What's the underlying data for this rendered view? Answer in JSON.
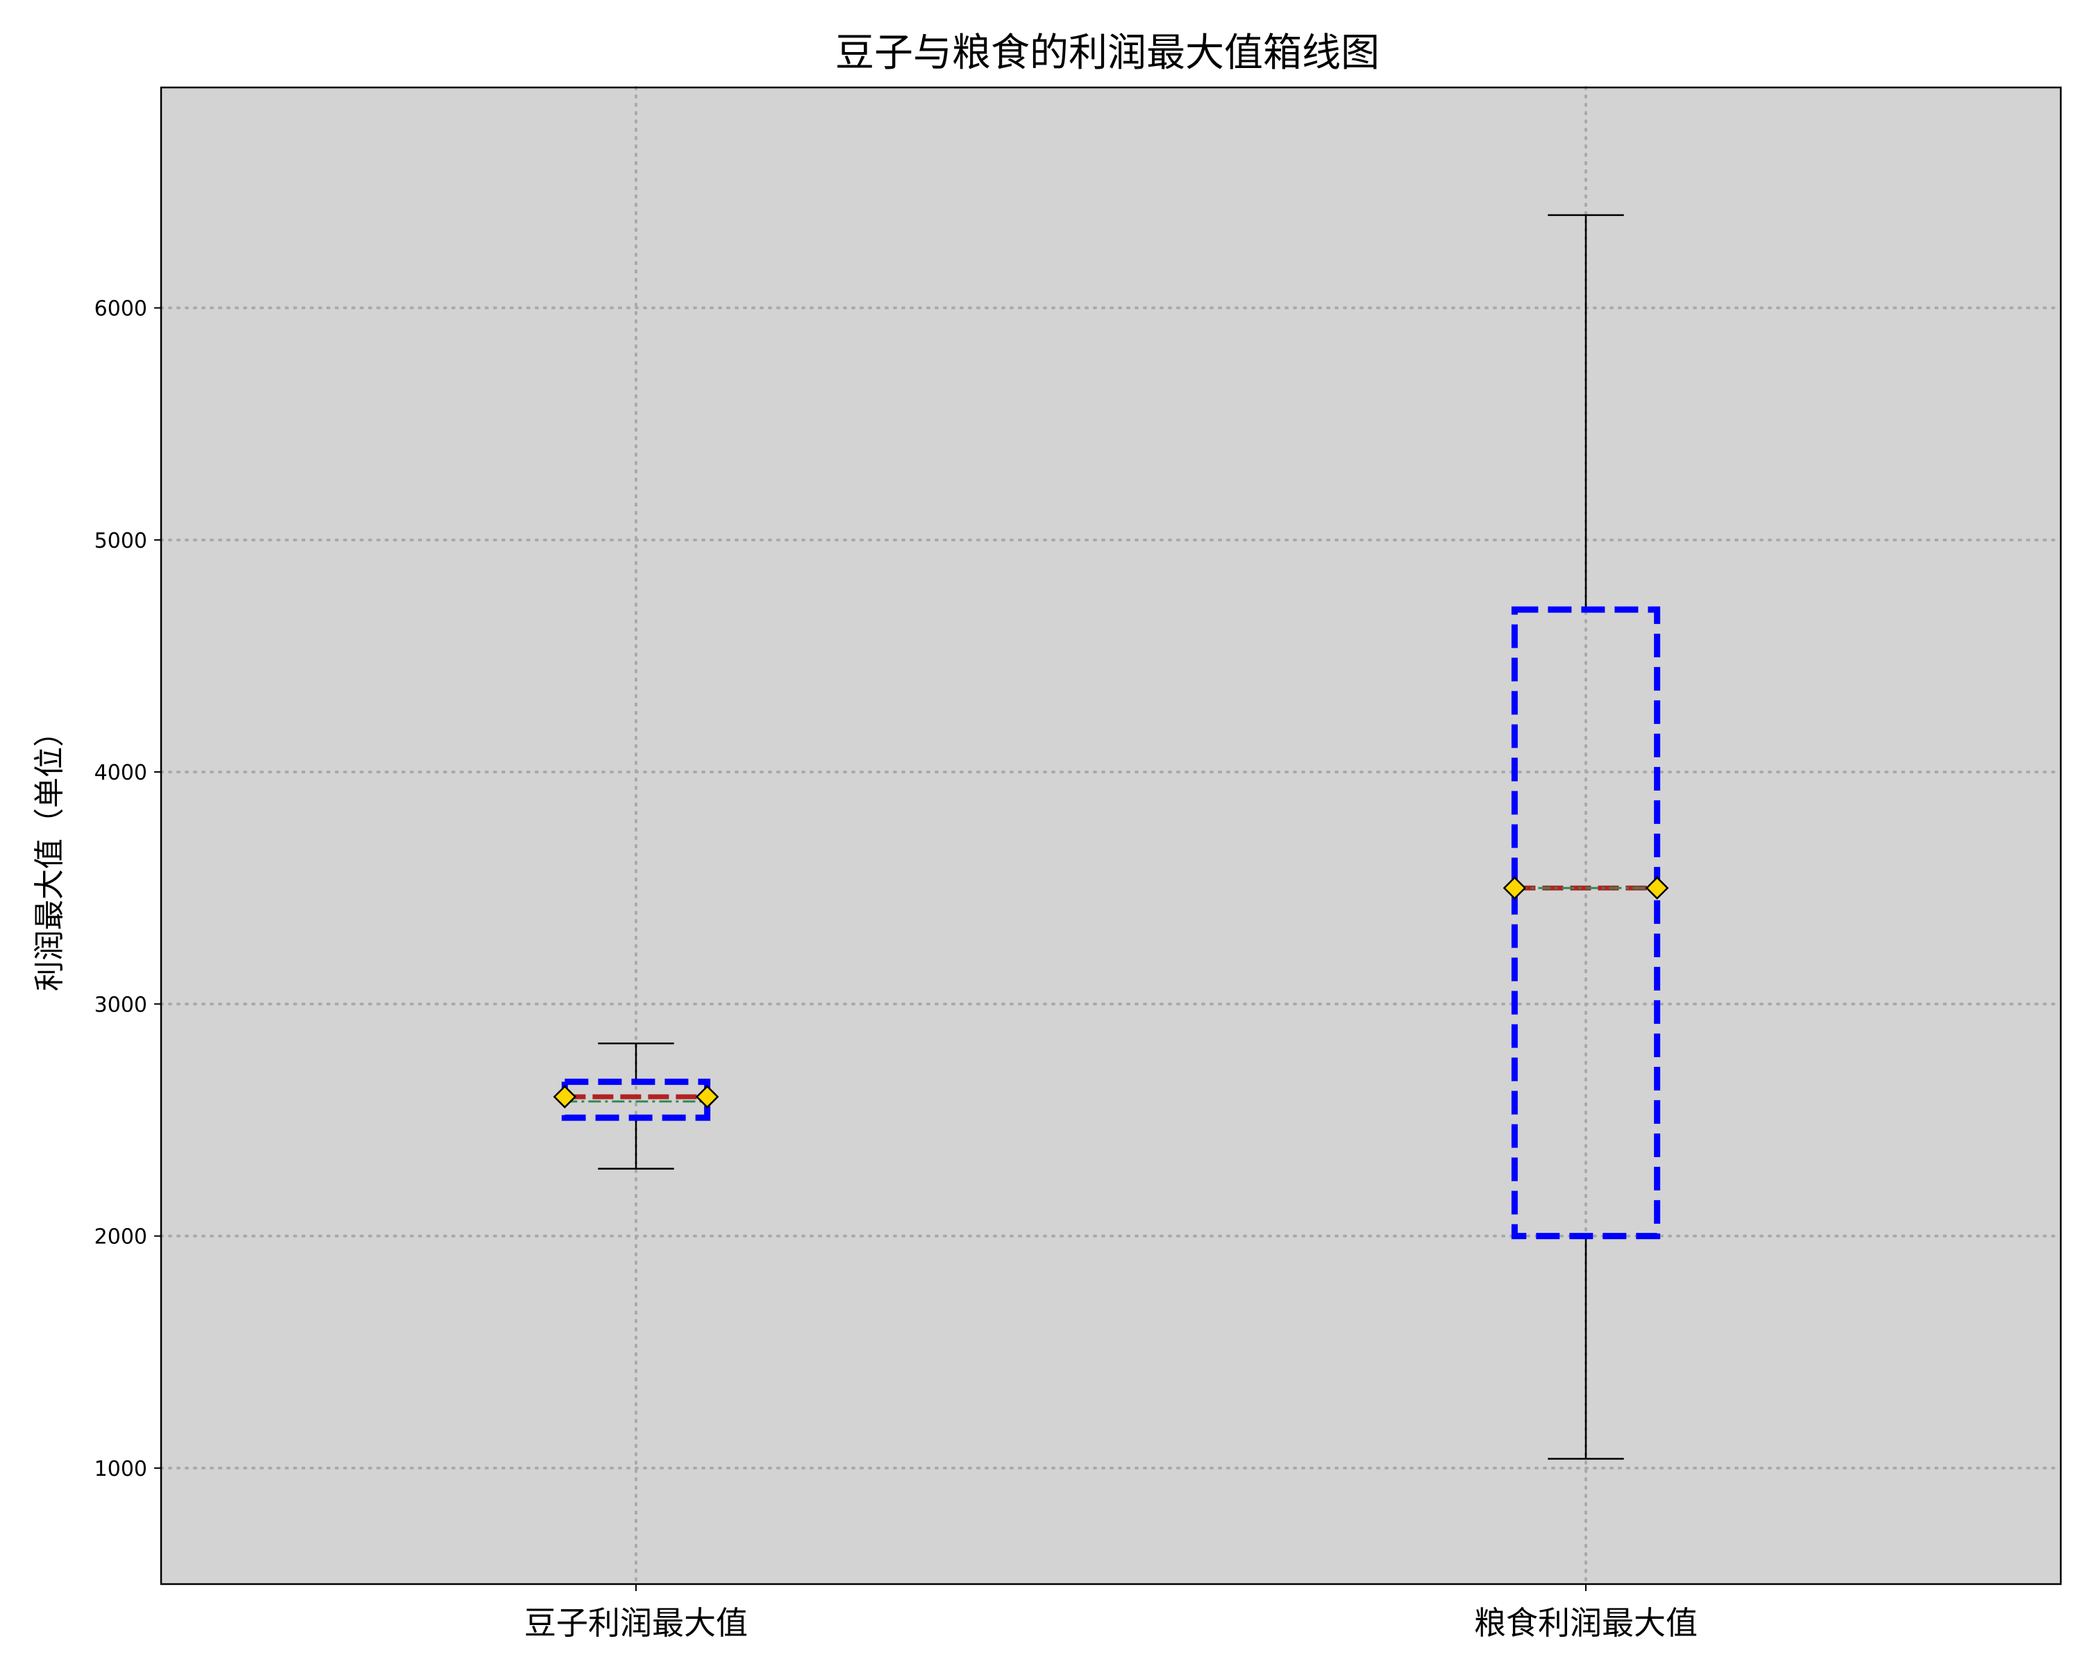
{
  "chart_data": {
    "type": "box",
    "title": "豆子与粮食的利润最大值箱线图",
    "xlabel": "",
    "ylabel": "利润最大值（单位）",
    "categories": [
      "豆子利润最大值",
      "粮食利润最大值"
    ],
    "ylim": [
      500,
      6950
    ],
    "yticks": [
      1000,
      2000,
      3000,
      4000,
      5000,
      6000
    ],
    "grid": true,
    "boxes": [
      {
        "category": "豆子利润最大值",
        "whisker_low": 2290,
        "q1": 2510,
        "median": 2600,
        "mean": 2580,
        "q3": 2665,
        "whisker_high": 2830
      },
      {
        "category": "粮食利润最大值",
        "whisker_low": 1040,
        "q1": 2000,
        "median": 3500,
        "mean": 3500,
        "q3": 4700,
        "whisker_high": 6400
      }
    ],
    "colors": {
      "background": "#d3d3d3",
      "box": "#0000ff",
      "median": "#b22222",
      "mean": "#2e8b57",
      "marker_fill": "#ffd700",
      "whisker": "#000000",
      "grid": "#a9a9a9"
    }
  }
}
